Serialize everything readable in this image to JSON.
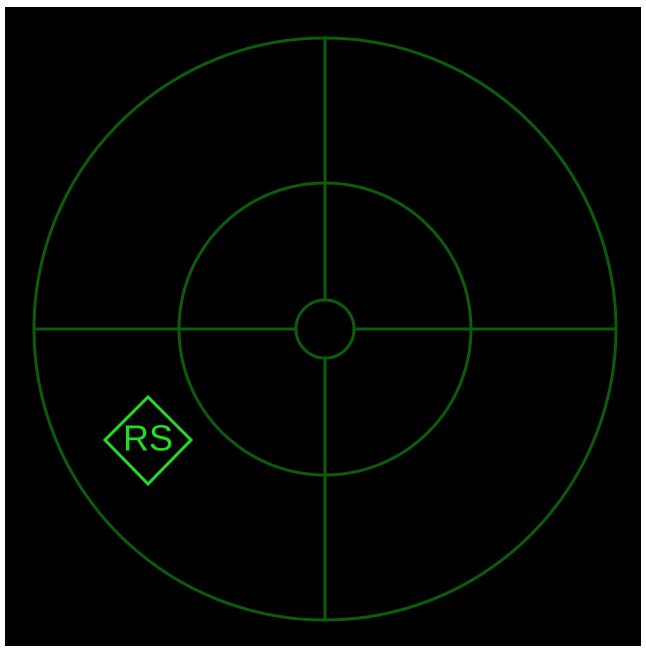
{
  "marker": {
    "label": "RS"
  }
}
